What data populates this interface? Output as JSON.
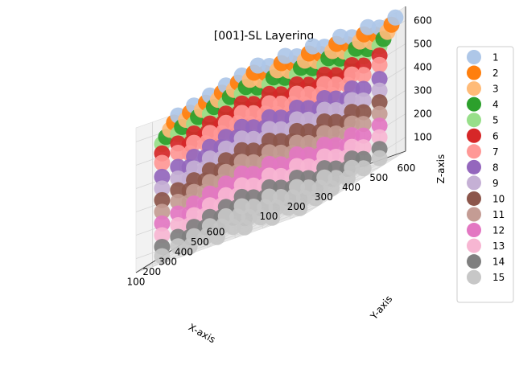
{
  "chart_data": {
    "type": "scatter",
    "projection": "3d",
    "title": "[001]-SL Layering",
    "xlabel": "X-axis",
    "ylabel": "Y-axis",
    "zlabel": "Z-axis",
    "x_ticks": [
      "100",
      "200",
      "300",
      "400",
      "500",
      "600"
    ],
    "y_ticks": [
      "100",
      "200",
      "300",
      "400",
      "500",
      "600"
    ],
    "z_ticks": [
      "100",
      "200",
      "300",
      "400",
      "500",
      "600"
    ],
    "xlim": [
      40,
      660
    ],
    "ylim": [
      40,
      660
    ],
    "zlim": [
      40,
      660
    ],
    "grid": true,
    "legend_position": "right outside",
    "lattice_x": [
      100,
      200,
      300,
      400,
      500,
      600
    ],
    "lattice_y": [
      100,
      200,
      300,
      400,
      500,
      600
    ],
    "series": [
      {
        "name": "1",
        "color": "#aec7e8",
        "z": 620,
        "x_offset": 100
      },
      {
        "name": "2",
        "color": "#ff7f0e",
        "z": 600,
        "x_offset": 75
      },
      {
        "name": "3",
        "color": "#ffbb78",
        "z": 580,
        "x_offset": 50
      },
      {
        "name": "4",
        "color": "#2ca02c",
        "z": 560,
        "x_offset": 25
      },
      {
        "name": "5",
        "color": "#98df8a",
        "z": 540,
        "x_offset": 0
      },
      {
        "name": "6",
        "color": "#d62728",
        "z": 500,
        "x_offset": 0
      },
      {
        "name": "7",
        "color": "#ff9896",
        "z": 460,
        "x_offset": 0
      },
      {
        "name": "8",
        "color": "#9467bd",
        "z": 400,
        "x_offset": 0
      },
      {
        "name": "9",
        "color": "#c5b0d5",
        "z": 350,
        "x_offset": 0
      },
      {
        "name": "10",
        "color": "#8c564b",
        "z": 300,
        "x_offset": 0
      },
      {
        "name": "11",
        "color": "#c49c94",
        "z": 250,
        "x_offset": 0
      },
      {
        "name": "12",
        "color": "#e377c2",
        "z": 200,
        "x_offset": 0
      },
      {
        "name": "13",
        "color": "#f7b6d2",
        "z": 150,
        "x_offset": 0
      },
      {
        "name": "14",
        "color": "#7f7f7f",
        "z": 100,
        "x_offset": 0
      },
      {
        "name": "15",
        "color": "#c7c7c7",
        "z": 60,
        "x_offset": 0
      }
    ]
  }
}
